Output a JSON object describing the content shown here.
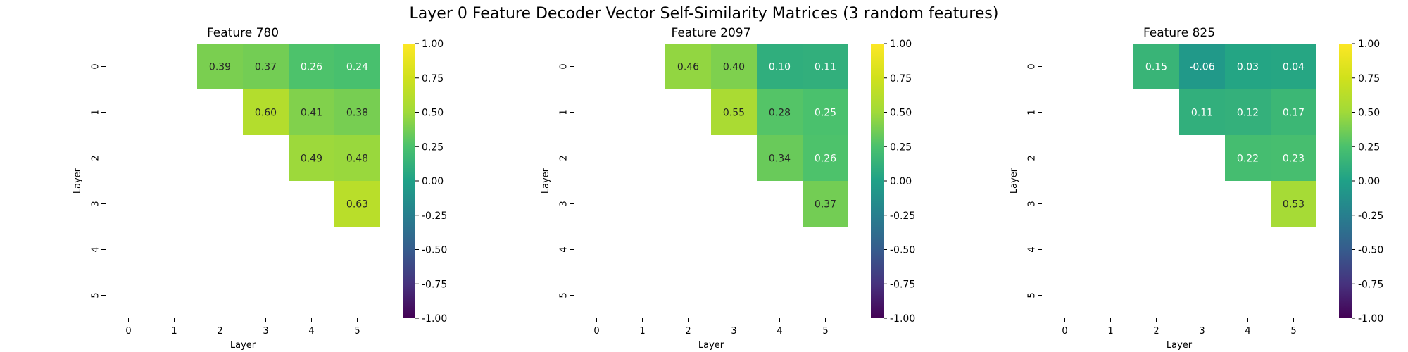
{
  "suptitle": "Layer 0 Feature Decoder Vector Self-Similarity Matrices (3 random features)",
  "chart_data": [
    {
      "type": "heatmap",
      "title": "Feature 780",
      "xlabel": "Layer",
      "ylabel": "Layer",
      "x_ticks": [
        "0",
        "1",
        "2",
        "3",
        "4",
        "5"
      ],
      "y_ticks": [
        "0",
        "1",
        "2",
        "3",
        "4",
        "5"
      ],
      "mask": "lower-triangle-and-diagonal",
      "values": [
        [
          null,
          null,
          0.39,
          0.37,
          0.26,
          0.24
        ],
        [
          null,
          null,
          null,
          0.6,
          0.41,
          0.38
        ],
        [
          null,
          null,
          null,
          null,
          0.49,
          0.48
        ],
        [
          null,
          null,
          null,
          null,
          null,
          0.63
        ],
        [
          null,
          null,
          null,
          null,
          null,
          null
        ],
        [
          null,
          null,
          null,
          null,
          null,
          null
        ]
      ],
      "annotations": [
        [
          "",
          "",
          "0.39",
          "0.37",
          "0.26",
          "0.24"
        ],
        [
          "",
          "",
          "",
          "0.60",
          "0.41",
          "0.38"
        ],
        [
          "",
          "",
          "",
          "",
          "0.49",
          "0.48"
        ],
        [
          "",
          "",
          "",
          "",
          "",
          "0.63"
        ],
        [
          "",
          "",
          "",
          "",
          "",
          ""
        ],
        [
          "",
          "",
          "",
          "",
          "",
          ""
        ]
      ],
      "colormap": "viridis",
      "vmin": -1.0,
      "vmax": 1.0,
      "colorbar_ticks": [
        "-1.00",
        "-0.75",
        "-0.50",
        "-0.25",
        "0.00",
        "0.25",
        "0.50",
        "0.75",
        "1.00"
      ]
    },
    {
      "type": "heatmap",
      "title": "Feature 2097",
      "xlabel": "Layer",
      "ylabel": "Layer",
      "x_ticks": [
        "0",
        "1",
        "2",
        "3",
        "4",
        "5"
      ],
      "y_ticks": [
        "0",
        "1",
        "2",
        "3",
        "4",
        "5"
      ],
      "mask": "lower-triangle-and-diagonal",
      "values": [
        [
          null,
          null,
          0.46,
          0.4,
          0.1,
          0.11
        ],
        [
          null,
          null,
          null,
          0.55,
          0.28,
          0.25
        ],
        [
          null,
          null,
          null,
          null,
          0.34,
          0.26
        ],
        [
          null,
          null,
          null,
          null,
          null,
          0.37
        ],
        [
          null,
          null,
          null,
          null,
          null,
          null
        ],
        [
          null,
          null,
          null,
          null,
          null,
          null
        ]
      ],
      "annotations": [
        [
          "",
          "",
          "0.46",
          "0.40",
          "0.10",
          "0.11"
        ],
        [
          "",
          "",
          "",
          "0.55",
          "0.28",
          "0.25"
        ],
        [
          "",
          "",
          "",
          "",
          "0.34",
          "0.26"
        ],
        [
          "",
          "",
          "",
          "",
          "",
          "0.37"
        ],
        [
          "",
          "",
          "",
          "",
          "",
          ""
        ],
        [
          "",
          "",
          "",
          "",
          "",
          ""
        ]
      ],
      "colormap": "viridis",
      "vmin": -1.0,
      "vmax": 1.0,
      "colorbar_ticks": [
        "-1.00",
        "-0.75",
        "-0.50",
        "-0.25",
        "0.00",
        "0.25",
        "0.50",
        "0.75",
        "1.00"
      ]
    },
    {
      "type": "heatmap",
      "title": "Feature 825",
      "xlabel": "Layer",
      "ylabel": "Layer",
      "x_ticks": [
        "0",
        "1",
        "2",
        "3",
        "4",
        "5"
      ],
      "y_ticks": [
        "0",
        "1",
        "2",
        "3",
        "4",
        "5"
      ],
      "mask": "lower-triangle-and-diagonal",
      "values": [
        [
          null,
          null,
          0.15,
          -0.06,
          0.03,
          0.04
        ],
        [
          null,
          null,
          null,
          0.11,
          0.12,
          0.17
        ],
        [
          null,
          null,
          null,
          null,
          0.22,
          0.23
        ],
        [
          null,
          null,
          null,
          null,
          null,
          0.53
        ],
        [
          null,
          null,
          null,
          null,
          null,
          null
        ],
        [
          null,
          null,
          null,
          null,
          null,
          null
        ]
      ],
      "annotations": [
        [
          "",
          "",
          "0.15",
          "-0.06",
          "0.03",
          "0.04"
        ],
        [
          "",
          "",
          "",
          "0.11",
          "0.12",
          "0.17"
        ],
        [
          "",
          "",
          "",
          "",
          "0.22",
          "0.23"
        ],
        [
          "",
          "",
          "",
          "",
          "",
          "0.53"
        ],
        [
          "",
          "",
          "",
          "",
          "",
          ""
        ],
        [
          "",
          "",
          "",
          "",
          "",
          ""
        ]
      ],
      "colormap": "viridis",
      "vmin": -1.0,
      "vmax": 1.0,
      "colorbar_ticks": [
        "-1.00",
        "-0.75",
        "-0.50",
        "-0.25",
        "0.00",
        "0.25",
        "0.50",
        "0.75",
        "1.00"
      ]
    }
  ]
}
